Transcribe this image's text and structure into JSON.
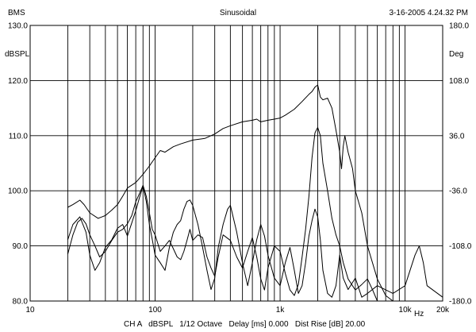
{
  "header": {
    "left": "BMS",
    "center": "Sinusoidal",
    "right": "3-16-2005 4.24.32 PM"
  },
  "footer": {
    "text": "CH A   dBSPL   1/12 Octave   Delay [ms] 0.000   Dist Rise [dB] 20.00"
  },
  "chart_data": {
    "type": "line",
    "xscale": "log",
    "xlim": [
      10,
      20000
    ],
    "ylim": [
      80,
      130
    ],
    "y2lim": [
      -180,
      180
    ],
    "grid": true,
    "ylabel": "dBSPL",
    "y2label": "Deg",
    "xlabel_unit": "Hz",
    "x_tick_labels": [
      {
        "value": 10,
        "label": "10"
      },
      {
        "value": 100,
        "label": "100"
      },
      {
        "value": 1000,
        "label": "1k"
      },
      {
        "value": 10000,
        "label": "10k"
      },
      {
        "value": 20000,
        "label": "20k"
      }
    ],
    "y_tick_labels": [
      "80.0",
      "90.0",
      "100.0",
      "110.0",
      "120.0",
      "130.0"
    ],
    "y2_tick_labels": [
      "-180.0",
      "-108.0",
      "-36.0",
      "36.0",
      "108.0",
      "180.0"
    ],
    "series": [
      {
        "axis": "left",
        "points": [
          [
            20,
            97
          ],
          [
            22,
            97.5
          ],
          [
            25,
            98.3
          ],
          [
            27,
            97.5
          ],
          [
            30,
            96
          ],
          [
            35,
            95
          ],
          [
            40,
            95.5
          ],
          [
            45,
            96.5
          ],
          [
            50,
            97.5
          ],
          [
            55,
            99
          ],
          [
            60,
            100.5
          ],
          [
            70,
            101.5
          ],
          [
            80,
            103
          ],
          [
            90,
            104.5
          ],
          [
            100,
            106
          ],
          [
            110,
            107.3
          ],
          [
            120,
            107
          ],
          [
            140,
            108
          ],
          [
            160,
            108.5
          ],
          [
            200,
            109.2
          ],
          [
            250,
            109.5
          ],
          [
            300,
            110.3
          ],
          [
            350,
            111.3
          ],
          [
            400,
            111.8
          ],
          [
            500,
            112.5
          ],
          [
            600,
            112.8
          ],
          [
            650,
            113
          ],
          [
            700,
            112.5
          ],
          [
            800,
            112.8
          ],
          [
            900,
            113
          ],
          [
            1000,
            113.2
          ],
          [
            1100,
            113.7
          ],
          [
            1300,
            114.8
          ],
          [
            1500,
            116.2
          ],
          [
            1700,
            117.5
          ],
          [
            1800,
            118
          ],
          [
            1900,
            118.8
          ],
          [
            2000,
            119.2
          ],
          [
            2100,
            117
          ],
          [
            2200,
            116.5
          ],
          [
            2400,
            116.8
          ],
          [
            2600,
            115
          ],
          [
            2800,
            111
          ],
          [
            3000,
            107
          ],
          [
            3100,
            104
          ],
          [
            3200,
            108
          ],
          [
            3300,
            110
          ],
          [
            3500,
            107
          ],
          [
            3800,
            104
          ],
          [
            4000,
            100
          ],
          [
            4500,
            96
          ],
          [
            5000,
            90
          ],
          [
            6000,
            84
          ],
          [
            7000,
            81
          ],
          [
            8000,
            80
          ]
        ]
      },
      {
        "axis": "left",
        "points": [
          [
            20,
            88.5
          ],
          [
            22,
            92
          ],
          [
            24,
            94.3
          ],
          [
            26,
            95
          ],
          [
            28,
            94
          ],
          [
            30,
            92
          ],
          [
            33,
            90
          ],
          [
            36,
            88
          ],
          [
            40,
            89
          ],
          [
            45,
            91
          ],
          [
            50,
            92.5
          ],
          [
            55,
            93
          ],
          [
            60,
            94
          ],
          [
            65,
            95.5
          ],
          [
            70,
            98
          ],
          [
            75,
            99.5
          ],
          [
            80,
            101
          ],
          [
            85,
            99
          ],
          [
            90,
            96
          ],
          [
            95,
            93
          ],
          [
            100,
            92
          ],
          [
            110,
            89
          ],
          [
            120,
            90
          ],
          [
            130,
            91
          ],
          [
            140,
            89.5
          ],
          [
            150,
            88
          ],
          [
            160,
            87.5
          ],
          [
            170,
            89
          ],
          [
            180,
            91
          ],
          [
            190,
            93
          ],
          [
            200,
            91
          ],
          [
            220,
            92
          ],
          [
            240,
            91.5
          ],
          [
            260,
            88
          ],
          [
            280,
            86
          ],
          [
            300,
            84.5
          ],
          [
            320,
            88
          ],
          [
            350,
            92
          ],
          [
            400,
            91
          ],
          [
            450,
            88
          ],
          [
            500,
            86
          ],
          [
            550,
            89
          ],
          [
            600,
            91.5
          ],
          [
            650,
            88
          ],
          [
            700,
            84
          ],
          [
            750,
            82
          ],
          [
            800,
            86
          ],
          [
            900,
            90
          ],
          [
            1000,
            89
          ],
          [
            1100,
            85
          ],
          [
            1200,
            82
          ],
          [
            1300,
            81
          ],
          [
            1400,
            83
          ],
          [
            1500,
            88
          ],
          [
            1600,
            93
          ],
          [
            1700,
            99
          ],
          [
            1800,
            106
          ],
          [
            1900,
            110.5
          ],
          [
            2000,
            111.5
          ],
          [
            2100,
            110
          ],
          [
            2200,
            105
          ],
          [
            2400,
            100
          ],
          [
            2600,
            95
          ],
          [
            2800,
            92
          ],
          [
            3000,
            90
          ],
          [
            3200,
            87
          ],
          [
            3500,
            84
          ],
          [
            4000,
            82
          ],
          [
            4500,
            83
          ],
          [
            5000,
            84
          ],
          [
            5500,
            82
          ],
          [
            6000,
            80
          ]
        ]
      },
      {
        "axis": "right",
        "points": [
          [
            20,
            -100
          ],
          [
            22,
            -80
          ],
          [
            25,
            -70
          ],
          [
            28,
            -90
          ],
          [
            30,
            -120
          ],
          [
            33,
            -140
          ],
          [
            36,
            -130
          ],
          [
            40,
            -110
          ],
          [
            45,
            -100
          ],
          [
            50,
            -85
          ],
          [
            55,
            -80
          ],
          [
            60,
            -95
          ],
          [
            65,
            -78
          ],
          [
            70,
            -62
          ],
          [
            75,
            -45
          ],
          [
            80,
            -30
          ],
          [
            85,
            -50
          ],
          [
            90,
            -80
          ],
          [
            95,
            -100
          ],
          [
            100,
            -120
          ],
          [
            110,
            -130
          ],
          [
            120,
            -140
          ],
          [
            130,
            -110
          ],
          [
            140,
            -90
          ],
          [
            150,
            -80
          ],
          [
            160,
            -75
          ],
          [
            170,
            -60
          ],
          [
            180,
            -50
          ],
          [
            190,
            -48
          ],
          [
            200,
            -55
          ],
          [
            220,
            -80
          ],
          [
            240,
            -110
          ],
          [
            260,
            -140
          ],
          [
            280,
            -165
          ],
          [
            300,
            -150
          ],
          [
            320,
            -110
          ],
          [
            350,
            -80
          ],
          [
            380,
            -60
          ],
          [
            400,
            -55
          ],
          [
            450,
            -90
          ],
          [
            500,
            -130
          ],
          [
            550,
            -160
          ],
          [
            600,
            -130
          ],
          [
            650,
            -100
          ],
          [
            700,
            -80
          ],
          [
            750,
            -95
          ],
          [
            800,
            -120
          ],
          [
            900,
            -150
          ],
          [
            1000,
            -160
          ],
          [
            1100,
            -130
          ],
          [
            1200,
            -110
          ],
          [
            1300,
            -140
          ],
          [
            1400,
            -170
          ],
          [
            1500,
            -160
          ],
          [
            1600,
            -130
          ],
          [
            1700,
            -95
          ],
          [
            1800,
            -75
          ],
          [
            1900,
            -60
          ],
          [
            2000,
            -70
          ],
          [
            2100,
            -100
          ],
          [
            2200,
            -140
          ],
          [
            2400,
            -170
          ],
          [
            2600,
            -175
          ],
          [
            2800,
            -160
          ],
          [
            3000,
            -120
          ],
          [
            3200,
            -150
          ],
          [
            3500,
            -165
          ],
          [
            4000,
            -150
          ],
          [
            4500,
            -175
          ],
          [
            5000,
            -170
          ],
          [
            6000,
            -160
          ],
          [
            8000,
            -170
          ],
          [
            10000,
            -160
          ],
          [
            12000,
            -120
          ],
          [
            13000,
            -108
          ],
          [
            14000,
            -130
          ],
          [
            15000,
            -160
          ],
          [
            20000,
            -175
          ]
        ]
      }
    ]
  }
}
